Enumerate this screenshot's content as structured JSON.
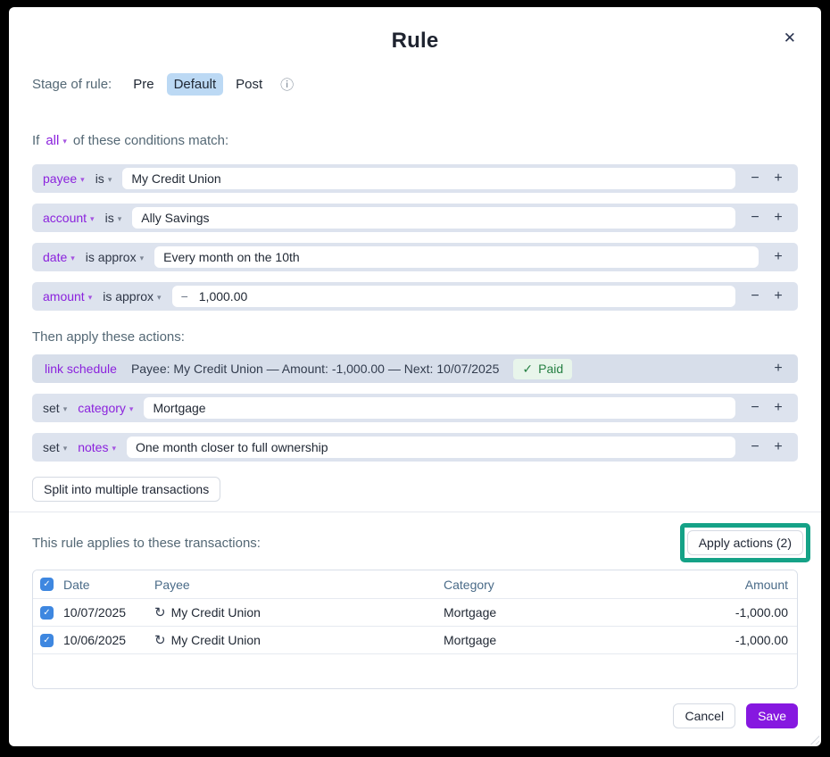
{
  "icons": {
    "close": "✕",
    "info": "ⓘ",
    "chevron": "▾",
    "minus": "−",
    "plus": "+",
    "check": "✓",
    "recurring": "↻"
  },
  "dialog": {
    "title": "Rule"
  },
  "stage": {
    "label": "Stage of rule:",
    "options": [
      {
        "label": "Pre"
      },
      {
        "label": "Default"
      },
      {
        "label": "Post"
      }
    ],
    "selected": "Default"
  },
  "conditions": {
    "prefix": "If",
    "operator": "all",
    "suffix": "of these conditions match:",
    "rows": [
      {
        "field": "payee",
        "op": "is",
        "value": "My Credit Union"
      },
      {
        "field": "account",
        "op": "is",
        "value": "Ally Savings"
      },
      {
        "field": "date",
        "op": "is approx",
        "value": "Every month on the 10th"
      },
      {
        "field": "amount",
        "op": "is approx",
        "value": "1,000.00",
        "value_prefix": "−"
      }
    ]
  },
  "actions": {
    "label": "Then apply these actions:",
    "schedule": {
      "link_label": "link schedule",
      "description": "Payee: My Credit Union — Amount: -1,000.00 — Next: 10/07/2025",
      "badge_label": "Paid"
    },
    "set_rows": [
      {
        "verb": "set",
        "field": "category",
        "value": "Mortgage"
      },
      {
        "verb": "set",
        "field": "notes",
        "value": "One month closer to full ownership"
      }
    ],
    "split_button": "Split into multiple transactions"
  },
  "transactions": {
    "label": "This rule applies to these transactions:",
    "apply_button": "Apply actions (2)",
    "annotation_color": "#15a287",
    "columns": {
      "date": "Date",
      "payee": "Payee",
      "category": "Category",
      "amount": "Amount"
    },
    "rows": [
      {
        "date": "10/07/2025",
        "payee": "My Credit Union",
        "category": "Mortgage",
        "amount": "-1,000.00"
      },
      {
        "date": "10/06/2025",
        "payee": "My Credit Union",
        "category": "Mortgage",
        "amount": "-1,000.00"
      }
    ]
  },
  "footer": {
    "cancel": "Cancel",
    "save": "Save"
  },
  "colors": {
    "accent_purple": "#8618e0",
    "field_purple": "#8b22dd",
    "stage_selected_bg": "#bcd9f4",
    "row_bg": "#dde3ee",
    "schedule_row_bg": "#d7deea",
    "paid_bg": "#e8f5eb",
    "paid_text": "#247f42",
    "checkbox_blue": "#3e87e0",
    "annotation_teal": "#15a287"
  }
}
